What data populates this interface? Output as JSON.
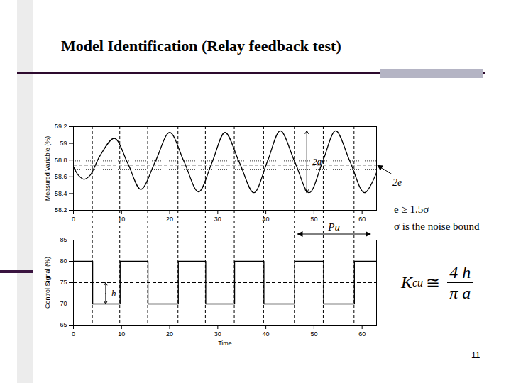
{
  "title": "Model Identification (Relay feedback test)",
  "page_number": "11",
  "notes": [
    "e ≥ 1.5σ",
    "σ is the noise bound"
  ],
  "formula": {
    "lhs": "K",
    "lhs_sub": "cu",
    "relation": "≅",
    "numerator": "4 h",
    "denominator": "π a"
  },
  "period": {
    "label": "Pu",
    "x1": 46.7,
    "x2": 61.8
  },
  "chart_data": [
    {
      "type": "line",
      "line_style": "smooth",
      "y_label": "Measured Variable (%)",
      "color": "#000000",
      "x": [
        0,
        1,
        2.2,
        3.5,
        5.5,
        8.5,
        11.3,
        14,
        17,
        20,
        23,
        26,
        28.8,
        31.5,
        34.5,
        37.5,
        40.3,
        43,
        46,
        49,
        51.8,
        54.5,
        57.5,
        60.5,
        63
      ],
      "values": [
        58.72,
        58.62,
        58.57,
        58.62,
        58.85,
        59.06,
        58.76,
        58.45,
        58.78,
        59.13,
        58.78,
        58.42,
        58.77,
        59.13,
        58.77,
        58.41,
        58.78,
        59.15,
        58.78,
        58.41,
        58.78,
        59.15,
        58.78,
        58.41,
        58.65
      ],
      "xlim": [
        0,
        63
      ],
      "xticks": [
        0,
        10,
        20,
        30,
        40,
        50,
        60
      ],
      "ylim": [
        58.2,
        59.2
      ],
      "yticks": [
        58.2,
        58.4,
        58.6,
        58.8,
        59,
        59.2
      ],
      "setpoint": 58.74,
      "e": 0.05,
      "band_label": "2e",
      "amplitude_arrow": {
        "label": "2a",
        "x": 48.5,
        "y1": 58.41,
        "y2": 59.15
      }
    },
    {
      "type": "line",
      "line_style": "step",
      "x_label": "Time",
      "y_label": "Control Signal (%)",
      "color": "#000000",
      "x": [
        0,
        4,
        9.7,
        15.5,
        21.8,
        27.5,
        33.5,
        39.6,
        46,
        52,
        58.4,
        63
      ],
      "values": [
        80,
        70,
        80,
        70,
        80,
        70,
        80,
        70,
        80,
        70,
        80,
        80
      ],
      "xlim": [
        0,
        63
      ],
      "xticks": [
        0,
        10,
        20,
        30,
        40,
        50,
        60
      ],
      "ylim": [
        65,
        85
      ],
      "yticks": [
        65,
        70,
        75,
        80,
        85
      ],
      "reference": 75,
      "h_arrow": {
        "label": "h",
        "x": 6.7,
        "y1": 70,
        "y2": 75
      }
    }
  ]
}
